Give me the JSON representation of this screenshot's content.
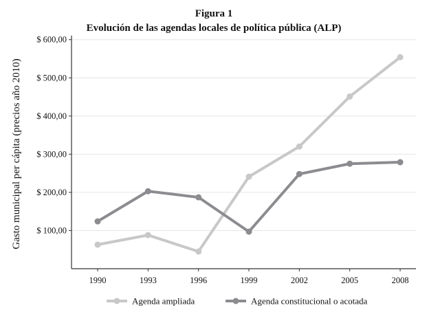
{
  "chart_data": {
    "type": "line",
    "title": "Figura 1",
    "subtitle": "Evolución de las agendas locales de política pública (ALP)",
    "xlabel": "",
    "ylabel": "Gasto municipal per cápita (precios año 2010)",
    "x": [
      1990,
      1993,
      1996,
      1999,
      2002,
      2005,
      2008
    ],
    "x_tick_labels": [
      "1990",
      "1993",
      "1996",
      "1999",
      "2002",
      "2005",
      "2008"
    ],
    "y_ticks": [
      100,
      200,
      300,
      400,
      500,
      600
    ],
    "y_tick_labels": [
      "$ 100,00",
      "$ 200,00",
      "$ 300,00",
      "$ 400,00",
      "$ 500,00",
      "$ 600,00"
    ],
    "ylim": [
      0,
      600
    ],
    "grid": true,
    "legend_position": "bottom",
    "series": [
      {
        "name": "Agenda ampliada",
        "color": "#c8c8c8",
        "values": [
          63,
          88,
          45,
          241,
          320,
          451,
          554
        ]
      },
      {
        "name": "Agenda constitucional o acotada",
        "color": "#8c8c90",
        "values": [
          124,
          203,
          187,
          97,
          248,
          275,
          279
        ]
      }
    ]
  }
}
